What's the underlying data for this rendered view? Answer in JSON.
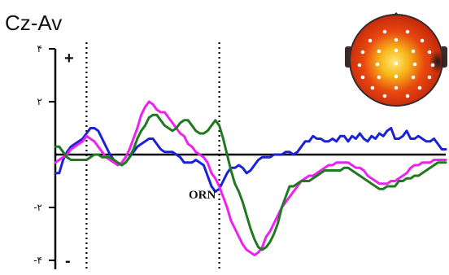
{
  "chart_data": {
    "type": "line",
    "title": "Cz-Av",
    "xlabel": "",
    "ylabel": "",
    "ylim": [
      -4.6,
      4.6
    ],
    "yticks": [
      {
        "value": 4,
        "label": "۴"
      },
      {
        "value": 2,
        "label": "۲"
      },
      {
        "value": -2,
        "label": "-۲"
      },
      {
        "value": -4,
        "label": "-۴"
      }
    ],
    "polarity_marks": {
      "top": "+",
      "bottom": "-"
    },
    "x_range": [
      0,
      100
    ],
    "vertical_markers": [
      8,
      42
    ],
    "annotation": {
      "text": "ORN",
      "x": 41.5,
      "y": -1.7
    },
    "colors": {
      "blue": "#1a22d6",
      "magenta": "#ee22ee",
      "green": "#1f7a1f"
    },
    "series": [
      {
        "color_key": "blue",
        "x": [
          0,
          1,
          2,
          3,
          4,
          5,
          6,
          7,
          8,
          9,
          10,
          11,
          12,
          13,
          14,
          15,
          16,
          17,
          18,
          19,
          20,
          21,
          22,
          23,
          24,
          25,
          26,
          27,
          28,
          29,
          30,
          31,
          32,
          33,
          34,
          35,
          36,
          37,
          38,
          39,
          40,
          41,
          42,
          43,
          44,
          45,
          46,
          47,
          48,
          49,
          50,
          51,
          52,
          53,
          54,
          55,
          56,
          57,
          58,
          59,
          60,
          61,
          62,
          63,
          64,
          65,
          66,
          67,
          68,
          69,
          70,
          71,
          72,
          73,
          74,
          75,
          76,
          77,
          78,
          79,
          80,
          81,
          82,
          83,
          84,
          85,
          86,
          87,
          88,
          89,
          90,
          91,
          92,
          93,
          94,
          95,
          96,
          97,
          98,
          99,
          100
        ],
        "values": [
          -0.7,
          -0.7,
          -0.2,
          0.1,
          0.3,
          0.4,
          0.5,
          0.6,
          0.8,
          1.0,
          1.0,
          0.9,
          0.6,
          0.3,
          0.0,
          -0.2,
          -0.3,
          -0.4,
          -0.3,
          -0.1,
          0.1,
          0.3,
          0.4,
          0.5,
          0.6,
          0.6,
          0.4,
          0.2,
          0.1,
          0.1,
          0.1,
          0.0,
          -0.1,
          -0.3,
          -0.3,
          -0.3,
          -0.2,
          -0.3,
          -0.4,
          -0.8,
          -1.2,
          -1.4,
          -1.3,
          -1.0,
          -0.7,
          -0.5,
          -0.5,
          -0.4,
          -0.5,
          -0.7,
          -0.6,
          -0.4,
          -0.2,
          -0.1,
          -0.1,
          -0.1,
          0.0,
          0.0,
          0.0,
          0.1,
          0.1,
          0.0,
          0.1,
          0.3,
          0.5,
          0.5,
          0.7,
          0.6,
          0.6,
          0.5,
          0.5,
          0.6,
          0.5,
          0.7,
          0.7,
          0.5,
          0.7,
          0.6,
          0.8,
          0.6,
          0.5,
          0.7,
          0.6,
          0.8,
          0.7,
          0.9,
          1.0,
          0.6,
          0.6,
          0.7,
          0.9,
          0.6,
          0.6,
          0.7,
          0.6,
          0.5,
          0.5,
          0.6,
          0.4,
          0.2,
          0.2
        ]
      },
      {
        "color_key": "magenta",
        "x": [
          0,
          1,
          2,
          3,
          4,
          5,
          6,
          7,
          8,
          9,
          10,
          11,
          12,
          13,
          14,
          15,
          16,
          17,
          18,
          19,
          20,
          21,
          22,
          23,
          24,
          25,
          26,
          27,
          28,
          29,
          30,
          31,
          32,
          33,
          34,
          35,
          36,
          37,
          38,
          39,
          40,
          41,
          42,
          43,
          44,
          45,
          46,
          47,
          48,
          49,
          50,
          51,
          52,
          53,
          54,
          55,
          56,
          57,
          58,
          59,
          60,
          61,
          62,
          63,
          64,
          65,
          66,
          67,
          68,
          69,
          70,
          71,
          72,
          73,
          74,
          75,
          76,
          77,
          78,
          79,
          80,
          81,
          82,
          83,
          84,
          85,
          86,
          87,
          88,
          89,
          90,
          91,
          92,
          93,
          94,
          95,
          96,
          97,
          98,
          99,
          100
        ],
        "values": [
          -0.3,
          -0.2,
          -0.1,
          0.0,
          0.2,
          0.3,
          0.4,
          0.5,
          0.7,
          0.6,
          0.5,
          0.3,
          0.1,
          -0.1,
          -0.2,
          -0.3,
          -0.4,
          -0.3,
          -0.1,
          0.2,
          0.6,
          1.0,
          1.5,
          1.8,
          2.0,
          1.9,
          1.7,
          1.6,
          1.6,
          1.4,
          1.2,
          1.0,
          0.8,
          0.7,
          0.4,
          0.3,
          0.1,
          0.0,
          -0.1,
          -0.3,
          -0.7,
          -0.9,
          -1.2,
          -1.6,
          -2.0,
          -2.5,
          -2.8,
          -3.1,
          -3.4,
          -3.6,
          -3.7,
          -3.8,
          -3.7,
          -3.5,
          -3.1,
          -2.9,
          -2.6,
          -2.3,
          -2.0,
          -1.8,
          -1.6,
          -1.4,
          -1.2,
          -1.0,
          -0.9,
          -0.8,
          -0.8,
          -0.7,
          -0.6,
          -0.5,
          -0.4,
          -0.4,
          -0.3,
          -0.3,
          -0.3,
          -0.3,
          -0.4,
          -0.5,
          -0.5,
          -0.6,
          -0.8,
          -0.9,
          -1.0,
          -1.1,
          -1.1,
          -1.1,
          -1.0,
          -1.0,
          -0.9,
          -0.8,
          -0.7,
          -0.5,
          -0.4,
          -0.4,
          -0.3,
          -0.3,
          -0.3,
          -0.2,
          -0.2,
          -0.2,
          -0.2
        ]
      },
      {
        "color_key": "green",
        "x": [
          0,
          1,
          2,
          3,
          4,
          5,
          6,
          7,
          8,
          9,
          10,
          11,
          12,
          13,
          14,
          15,
          16,
          17,
          18,
          19,
          20,
          21,
          22,
          23,
          24,
          25,
          26,
          27,
          28,
          29,
          30,
          31,
          32,
          33,
          34,
          35,
          36,
          37,
          38,
          39,
          40,
          41,
          42,
          43,
          44,
          45,
          46,
          47,
          48,
          49,
          50,
          51,
          52,
          53,
          54,
          55,
          56,
          57,
          58,
          59,
          60,
          61,
          62,
          63,
          64,
          65,
          66,
          67,
          68,
          69,
          70,
          71,
          72,
          73,
          74,
          75,
          76,
          77,
          78,
          79,
          80,
          81,
          82,
          83,
          84,
          85,
          86,
          87,
          88,
          89,
          90,
          91,
          92,
          93,
          94,
          95,
          96,
          97,
          98,
          99,
          100
        ],
        "values": [
          0.3,
          0.3,
          0.1,
          -0.1,
          -0.2,
          -0.2,
          -0.2,
          -0.2,
          -0.2,
          -0.1,
          0.0,
          0.0,
          -0.1,
          -0.1,
          -0.1,
          -0.2,
          -0.3,
          -0.4,
          -0.3,
          -0.1,
          0.2,
          0.6,
          0.9,
          1.1,
          1.4,
          1.5,
          1.5,
          1.3,
          1.1,
          1.0,
          0.9,
          1.0,
          1.2,
          1.3,
          1.3,
          1.1,
          0.9,
          0.8,
          0.8,
          0.9,
          1.1,
          1.3,
          1.1,
          0.6,
          0.0,
          -0.6,
          -1.1,
          -1.4,
          -1.8,
          -2.3,
          -2.8,
          -3.2,
          -3.5,
          -3.6,
          -3.5,
          -3.3,
          -3.0,
          -2.6,
          -2.0,
          -1.6,
          -1.2,
          -1.2,
          -1.1,
          -1.0,
          -1.0,
          -1.0,
          -0.9,
          -0.8,
          -0.7,
          -0.6,
          -0.6,
          -0.6,
          -0.6,
          -0.6,
          -0.5,
          -0.5,
          -0.6,
          -0.7,
          -0.8,
          -0.9,
          -1.0,
          -1.1,
          -1.2,
          -1.3,
          -1.3,
          -1.2,
          -1.2,
          -1.2,
          -1.0,
          -1.0,
          -0.9,
          -0.9,
          -0.8,
          -0.8,
          -0.7,
          -0.6,
          -0.5,
          -0.4,
          -0.3,
          -0.3,
          -0.3
        ]
      }
    ]
  },
  "headmap": {
    "colors": {
      "outline": "#3a2a2a",
      "rim": "#b51a0a",
      "mid": "#e8480f",
      "hot": "#f7b81a",
      "core": "#ffe87a",
      "cold": "#1a1a1a",
      "electrode": "#ffffff"
    }
  }
}
